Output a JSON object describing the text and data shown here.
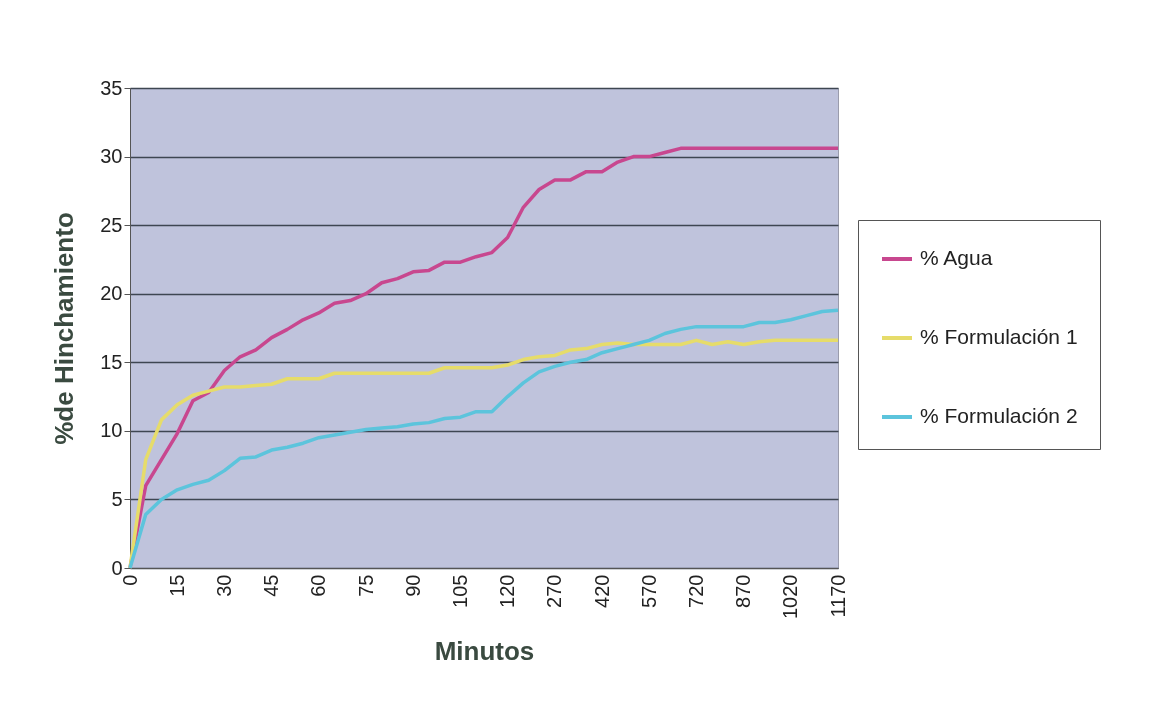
{
  "chart_data": {
    "type": "line",
    "xlabel": "Minutos",
    "ylabel": "%de Hinchamiento",
    "categories": [
      "0",
      null,
      null,
      "15",
      null,
      null,
      "30",
      null,
      null,
      "45",
      null,
      null,
      "60",
      null,
      null,
      "75",
      null,
      null,
      "90",
      null,
      null,
      "105",
      null,
      null,
      "120",
      null,
      null,
      "270",
      null,
      null,
      "420",
      null,
      null,
      "570",
      null,
      null,
      "720",
      null,
      null,
      "870",
      null,
      null,
      "1020",
      null,
      null,
      "1170"
    ],
    "series": [
      {
        "name": "% Agua",
        "color": "#c8478f",
        "values": [
          0,
          6.0,
          7.9,
          9.8,
          12.2,
          12.8,
          14.4,
          15.4,
          15.9,
          16.8,
          17.4,
          18.1,
          18.6,
          19.3,
          19.5,
          20.0,
          20.8,
          21.1,
          21.6,
          21.7,
          22.3,
          22.3,
          22.7,
          23.0,
          24.1,
          26.3,
          27.6,
          28.3,
          28.3,
          28.9,
          28.9,
          29.6,
          30.0,
          30.0,
          30.3,
          30.6,
          30.6,
          30.6,
          30.6,
          30.6,
          30.6,
          30.6,
          30.6,
          30.6,
          30.6,
          30.6
        ]
      },
      {
        "name": "% Formulación 1",
        "color": "#e6dc6a",
        "values": [
          0,
          7.9,
          10.8,
          11.9,
          12.6,
          12.9,
          13.2,
          13.2,
          13.3,
          13.4,
          13.8,
          13.8,
          13.8,
          14.2,
          14.2,
          14.2,
          14.2,
          14.2,
          14.2,
          14.2,
          14.6,
          14.6,
          14.6,
          14.6,
          14.8,
          15.2,
          15.4,
          15.5,
          15.9,
          16.0,
          16.3,
          16.4,
          16.3,
          16.3,
          16.3,
          16.3,
          16.6,
          16.3,
          16.5,
          16.3,
          16.5,
          16.6,
          16.6,
          16.6,
          16.6,
          16.6
        ]
      },
      {
        "name": "% Formulación 2",
        "color": "#5cc4dc",
        "values": [
          0,
          3.9,
          5.0,
          5.7,
          6.1,
          6.4,
          7.1,
          8.0,
          8.1,
          8.6,
          8.8,
          9.1,
          9.5,
          9.7,
          9.9,
          10.1,
          10.2,
          10.3,
          10.5,
          10.6,
          10.9,
          11.0,
          11.4,
          11.4,
          12.5,
          13.5,
          14.3,
          14.7,
          15.0,
          15.2,
          15.7,
          16.0,
          16.3,
          16.6,
          17.1,
          17.4,
          17.6,
          17.6,
          17.6,
          17.6,
          17.9,
          17.9,
          18.1,
          18.4,
          18.7,
          18.8
        ]
      }
    ],
    "ylim": [
      0,
      35
    ],
    "yticks": [
      0,
      5,
      10,
      15,
      20,
      25,
      30,
      35
    ],
    "grid": "y",
    "legend": "right",
    "marker": "none",
    "line_style": "solid"
  }
}
